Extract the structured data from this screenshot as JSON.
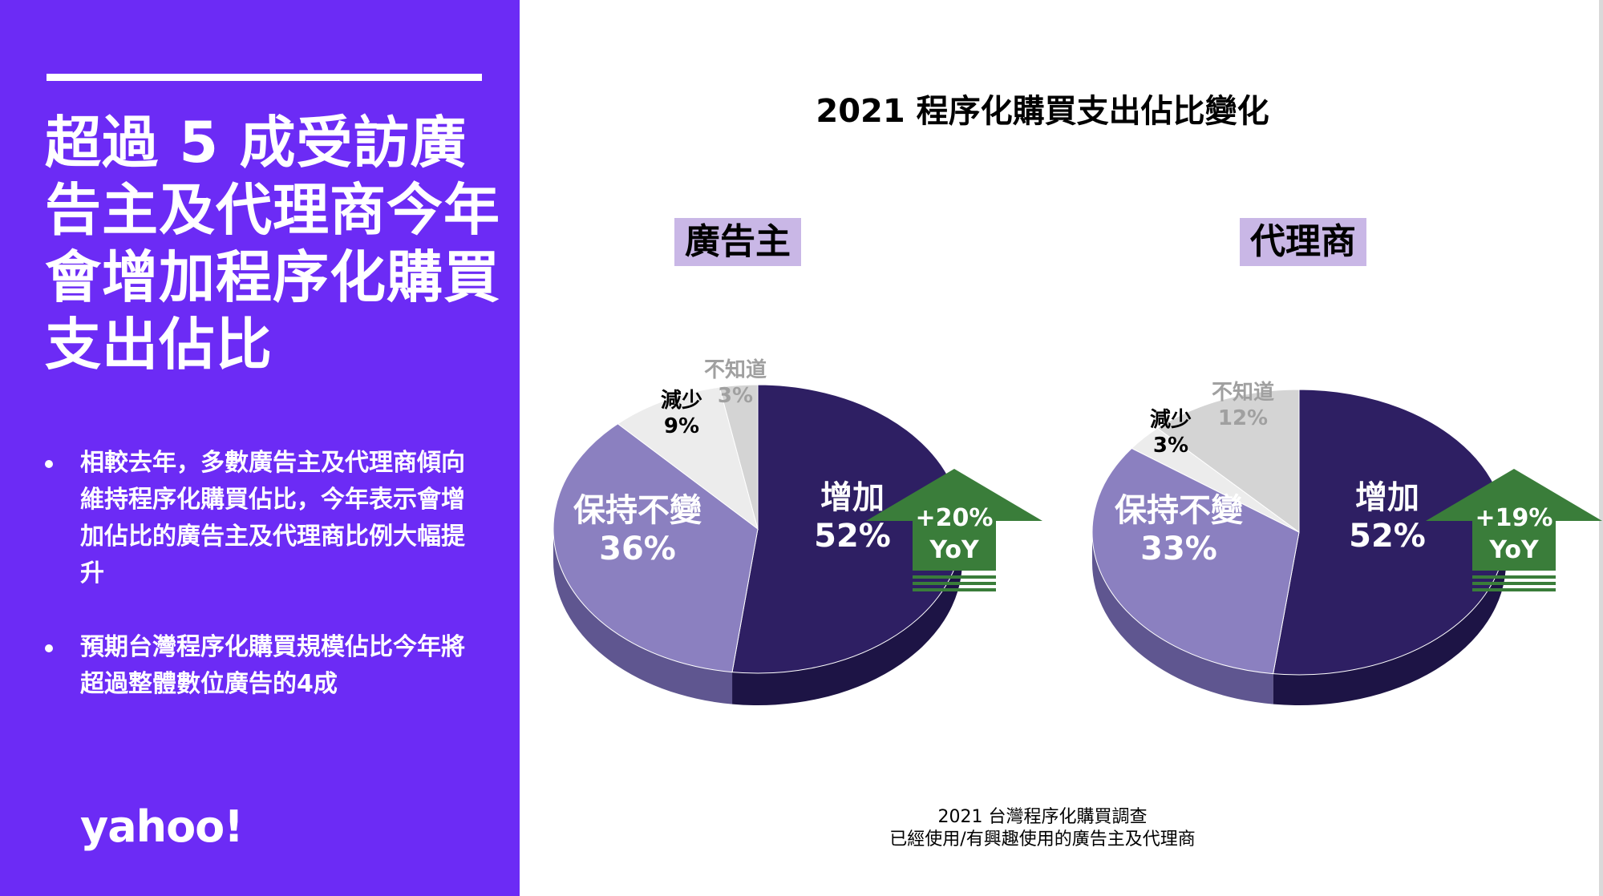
{
  "sidebar": {
    "headline": "超過 5 成受訪廣告主及代理商今年會增加程序化購買支出佔比",
    "bullets": [
      "相較去年，多數廣告主及代理商傾向維持程序化購買佔比，今年表示會增加佔比的廣告主及代理商比例大幅提升",
      "預期台灣程序化購買規模佔比今年將超過整體數位廣告的4成"
    ],
    "logo": "yahoo!"
  },
  "colors": {
    "panel": "#6c2bf5",
    "increase": "#2e1f63",
    "keep": "#8b80c0",
    "decrease": "#ececec",
    "unknown": "#d4d4d4",
    "arrow": "#3a7d3a",
    "group_label_bg": "#c9b7e6"
  },
  "chart_data": {
    "type": "pie",
    "title": "2021 程序化購買支出佔比變化",
    "source": [
      "2021 台灣程序化購買調查",
      "已經使用/有興趣使用的廣告主及代理商"
    ],
    "charts": [
      {
        "name": "廣告主",
        "slices": [
          {
            "label": "增加",
            "value": 52,
            "display": "52%"
          },
          {
            "label": "保持不變",
            "value": 36,
            "display": "36%"
          },
          {
            "label": "減少",
            "value": 9,
            "display": "9%"
          },
          {
            "label": "不知道",
            "value": 3,
            "display": "3%"
          }
        ],
        "yoy_change": "+20%",
        "yoy_label": "YoY"
      },
      {
        "name": "代理商",
        "slices": [
          {
            "label": "增加",
            "value": 52,
            "display": "52%"
          },
          {
            "label": "保持不變",
            "value": 33,
            "display": "33%"
          },
          {
            "label": "減少",
            "value": 3,
            "display": "3%"
          },
          {
            "label": "不知道",
            "value": 12,
            "display": "12%"
          }
        ],
        "yoy_change": "+19%",
        "yoy_label": "YoY"
      }
    ]
  }
}
